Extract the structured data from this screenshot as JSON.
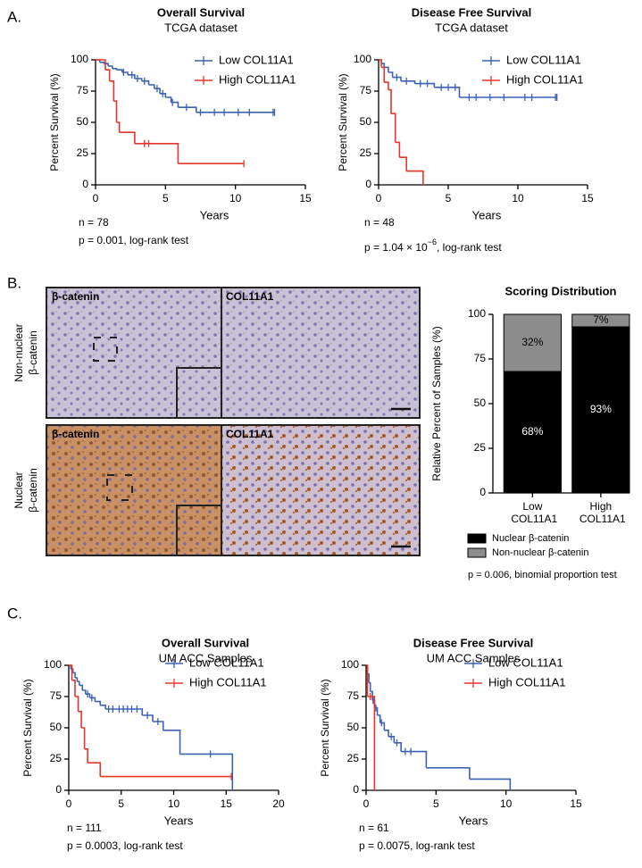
{
  "panel_labels": [
    "A.",
    "B.",
    "C."
  ],
  "micrographs": {
    "rows": [
      [
        "Non-nuclear",
        "β-catenin"
      ],
      [
        "Nuclear",
        "β-catenin"
      ]
    ],
    "stains": [
      "β-catenin",
      "COL11A1"
    ]
  },
  "chart_data": [
    {
      "type": "survival",
      "title": "Overall Survival",
      "subtitle": "TCGA dataset",
      "xlabel": "Years",
      "ylabel": "Percent Survival (%)",
      "xlim": [
        0,
        15
      ],
      "xticks": [
        0,
        5,
        10,
        15
      ],
      "ylim": [
        0,
        100
      ],
      "yticks": [
        0,
        25,
        50,
        75,
        100
      ],
      "annotations": [
        "n = 78",
        "p = 0.001, log-rank test"
      ],
      "series": [
        {
          "name": "Low COL11A1",
          "color": "#3b62b3",
          "x": [
            0,
            0.3,
            0.6,
            0.9,
            1.2,
            1.5,
            1.9,
            2.3,
            2.8,
            3.3,
            3.8,
            4.2,
            4.6,
            5.0,
            5.4,
            5.9,
            7.2
          ],
          "values": [
            100,
            98,
            97,
            95,
            93,
            92,
            90,
            88,
            85,
            83,
            80,
            77,
            73,
            70,
            66,
            62,
            58
          ],
          "censored_x": [
            2.0,
            2.6,
            3.0,
            3.5,
            4.4,
            4.8,
            5.5,
            6.5,
            7.5,
            8.5,
            9.2,
            10.2,
            11.0,
            12.7,
            12.8
          ]
        },
        {
          "name": "High COL11A1",
          "color": "#e8352b",
          "x": [
            0,
            0.7,
            1.0,
            1.3,
            1.5,
            1.7,
            2.8,
            5.9
          ],
          "values": [
            100,
            92,
            83,
            67,
            50,
            42,
            33,
            17
          ],
          "censored_x": [
            3.5,
            3.8,
            10.6
          ]
        }
      ]
    },
    {
      "type": "survival",
      "title": "Disease Free Survival",
      "subtitle": "TCGA dataset",
      "xlabel": "Years",
      "ylabel": "Percent Survival (%)",
      "xlim": [
        0,
        15
      ],
      "xticks": [
        0,
        5,
        10,
        15
      ],
      "ylim": [
        0,
        100
      ],
      "yticks": [
        0,
        25,
        50,
        75,
        100
      ],
      "annotations": [
        "n = 48",
        [
          "p = 1.04 × 10",
          "−6",
          ", log-rank test"
        ]
      ],
      "series": [
        {
          "name": "Low COL11A1",
          "color": "#3b62b3",
          "x": [
            0,
            0.2,
            0.4,
            0.7,
            1.0,
            1.6,
            2.6,
            4.0,
            5.8
          ],
          "values": [
            100,
            97,
            94,
            90,
            86,
            83,
            81,
            78,
            70
          ],
          "censored_x": [
            1.3,
            2.0,
            3.0,
            3.5,
            4.5,
            5.0,
            5.5,
            6.5,
            7.0,
            8.0,
            9.0,
            10.5,
            11.0,
            12.7,
            12.8
          ]
        },
        {
          "name": "High COL11A1",
          "color": "#e8352b",
          "x": [
            0,
            0.2,
            0.4,
            0.7,
            0.9,
            1.2,
            1.5,
            2.0,
            3.2
          ],
          "values": [
            100,
            94,
            82,
            76,
            57,
            34,
            22,
            11,
            0
          ],
          "censored_x": []
        }
      ]
    },
    {
      "type": "bar",
      "stacked": true,
      "title": "Scoring Distribution",
      "ylabel": "Relative Percent of Samples (%)",
      "categories": [
        "Low COL11A1",
        "High COL11A1"
      ],
      "ylim": [
        0,
        100
      ],
      "yticks": [
        0,
        25,
        50,
        75,
        100
      ],
      "annotations": [
        "p = 0.006, binomial proportion test"
      ],
      "series": [
        {
          "name": "Nuclear β-catenin",
          "color": "#000000",
          "label_color": "#ffffff",
          "values": [
            68,
            93
          ],
          "value_labels": [
            "68%",
            "93%"
          ]
        },
        {
          "name": "Non-nuclear β-catenin",
          "color": "#8c8c8c",
          "label_color": "#000000",
          "values": [
            32,
            7
          ],
          "value_labels": [
            "32%",
            "7%"
          ]
        }
      ]
    },
    {
      "type": "survival",
      "title": "Overall Survival",
      "subtitle": "UM ACC Samples",
      "xlabel": "Years",
      "ylabel": "Percent Survival (%)",
      "xlim": [
        0,
        20
      ],
      "xticks": [
        0,
        5,
        10,
        15,
        20
      ],
      "ylim": [
        0,
        100
      ],
      "yticks": [
        0,
        25,
        50,
        75,
        100
      ],
      "annotations": [
        "n = 111",
        "p = 0.0003, log-rank test"
      ],
      "series": [
        {
          "name": "Low COL11A1",
          "color": "#3b62b3",
          "x": [
            0,
            0.2,
            0.4,
            0.6,
            0.8,
            1.0,
            1.3,
            1.6,
            2.0,
            2.5,
            3.0,
            3.5,
            7.0,
            8.0,
            9.0,
            10.6,
            15.6
          ],
          "values": [
            100,
            97,
            94,
            90,
            87,
            84,
            80,
            77,
            74,
            71,
            68,
            65,
            60,
            55,
            48,
            29,
            0
          ],
          "censored_x": [
            1.8,
            2.2,
            3.8,
            4.2,
            4.8,
            5.2,
            5.6,
            6.0,
            6.5,
            7.5,
            8.5,
            13.5
          ]
        },
        {
          "name": "High COL11A1",
          "color": "#e8352b",
          "x": [
            0,
            0.3,
            0.6,
            0.9,
            1.2,
            1.5,
            1.8,
            3.0
          ],
          "values": [
            100,
            88,
            75,
            63,
            50,
            33,
            22,
            11
          ],
          "censored_x": [
            15.5
          ]
        }
      ]
    },
    {
      "type": "survival",
      "title": "Disease Free Survival",
      "subtitle": "UM ACC Samples",
      "xlabel": "Years",
      "ylabel": "Percent Survival (%)",
      "xlim": [
        0,
        15
      ],
      "xticks": [
        0,
        5,
        10,
        15
      ],
      "ylim": [
        0,
        100
      ],
      "yticks": [
        0,
        25,
        50,
        75,
        100
      ],
      "annotations": [
        "n = 61",
        "p = 0.0075, log-rank test"
      ],
      "series": [
        {
          "name": "Low COL11A1",
          "color": "#3b62b3",
          "x": [
            0,
            0.1,
            0.2,
            0.3,
            0.45,
            0.6,
            0.8,
            1.0,
            1.3,
            1.6,
            2.0,
            2.5,
            4.3,
            7.4,
            10.3
          ],
          "values": [
            100,
            93,
            86,
            79,
            72,
            66,
            60,
            54,
            48,
            43,
            38,
            31,
            18,
            9,
            0
          ],
          "censored_x": [
            0.5,
            0.7,
            1.1,
            1.8,
            2.2,
            2.8,
            3.2
          ]
        },
        {
          "name": "High COL11A1",
          "color": "#e8352b",
          "x": [
            0,
            0.1,
            0.6
          ],
          "values": [
            100,
            75,
            0
          ],
          "censored_x": [
            0.3
          ]
        }
      ]
    }
  ]
}
